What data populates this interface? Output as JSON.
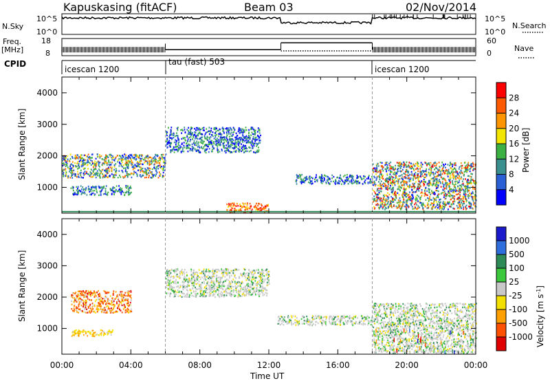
{
  "header": {
    "station": "Kapuskasing (fitACF)",
    "beam": "Beam 03",
    "date": "02/Nov/2014"
  },
  "nsky_panel": {
    "left_label": "N.Sky",
    "left_ticks": [
      "10^5",
      "10^0"
    ],
    "right_ticks": [
      "10^5",
      "10^0"
    ],
    "right_label": "N.Search",
    "line_styles": {
      "nsky": "solid",
      "nsearch": "dotted"
    }
  },
  "freq_panel": {
    "label_top": "Freq.",
    "label_bottom": "[MHz]",
    "left_ticks": [
      "18",
      "8"
    ],
    "right_ticks": [
      "60",
      "0"
    ],
    "right_label": "Nave",
    "freq_segments": [
      {
        "start": 0,
        "end": 6,
        "value": 11.5,
        "style": "dense"
      },
      {
        "start": 6,
        "end": 12.7,
        "value": 11.5,
        "style": "line"
      },
      {
        "start": 12.7,
        "end": 18,
        "value": 15.5,
        "style": "line"
      },
      {
        "start": 18,
        "end": 24,
        "value": 11.5,
        "style": "dense"
      }
    ]
  },
  "cpid": {
    "label": "CPID",
    "segments": [
      {
        "start": 0,
        "end": 6,
        "label": "icescan 1200"
      },
      {
        "start": 6,
        "end": 18,
        "label": "tau (fast) 503"
      },
      {
        "start": 18,
        "end": 24,
        "label": "icescan 1200"
      }
    ]
  },
  "axes": {
    "x_label": "Time UT",
    "x_ticks": [
      "00:00",
      "04:00",
      "08:00",
      "12:00",
      "16:00",
      "20:00",
      "00:00"
    ],
    "x_range_hours": [
      0,
      24
    ],
    "y_label": "Slant Range [km]",
    "y_ticks": [
      "1000",
      "2000",
      "3000",
      "4000"
    ],
    "y_range_km": [
      180,
      4500
    ]
  },
  "power_scale": {
    "title": "Power [dB]",
    "labels": [
      "4",
      "8",
      "12",
      "16",
      "20",
      "24",
      "28"
    ],
    "colors": [
      "#0000ff",
      "#2a5fd6",
      "#3b8f8f",
      "#3cb043",
      "#f2e500",
      "#ff9500",
      "#ff5a00",
      "#ff0000"
    ]
  },
  "velocity_scale": {
    "title_main": "Velocity [m s",
    "title_exp": "-1",
    "title_end": "]",
    "labels": [
      "1000",
      "500",
      "100",
      "25",
      "-25",
      "-100",
      "-500",
      "-1000"
    ],
    "colors": [
      "#1a1acc",
      "#2f6fdd",
      "#2e8b57",
      "#3cc83c",
      "#c8c8c8",
      "#f4e000",
      "#ffa000",
      "#ff5000",
      "#e00000"
    ]
  },
  "chart_data": {
    "type": "heatmap",
    "description_axes": "time (hours UT) vs slant range (km)",
    "power_regions": [
      {
        "t": [
          0.0,
          6.0
        ],
        "r": [
          1300,
          2050
        ],
        "level": "mixed-low-high"
      },
      {
        "t": [
          0.5,
          4.0
        ],
        "r": [
          750,
          1050
        ],
        "level": "green-blue"
      },
      {
        "t": [
          6.0,
          11.5
        ],
        "r": [
          2100,
          2900
        ],
        "level": "blue-green"
      },
      {
        "t": [
          9.5,
          12.0
        ],
        "r": [
          200,
          500
        ],
        "level": "high"
      },
      {
        "t": [
          13.5,
          18.0
        ],
        "r": [
          1100,
          1400
        ],
        "level": "blue-green"
      },
      {
        "t": [
          18.0,
          24.0
        ],
        "r": [
          300,
          1800
        ],
        "level": "mixed-high-low"
      }
    ],
    "velocity_regions": [
      {
        "t": [
          0.5,
          4.0
        ],
        "r": [
          1500,
          2200
        ],
        "level": "negative"
      },
      {
        "t": [
          0.5,
          3.0
        ],
        "r": [
          750,
          950
        ],
        "level": "weak-negative"
      },
      {
        "t": [
          6.0,
          12.0
        ],
        "r": [
          2000,
          2900
        ],
        "level": "near-zero"
      },
      {
        "t": [
          12.5,
          18.0
        ],
        "r": [
          1100,
          1400
        ],
        "level": "near-zero"
      },
      {
        "t": [
          18.0,
          24.0
        ],
        "r": [
          200,
          1800
        ],
        "level": "near-zero"
      }
    ]
  }
}
